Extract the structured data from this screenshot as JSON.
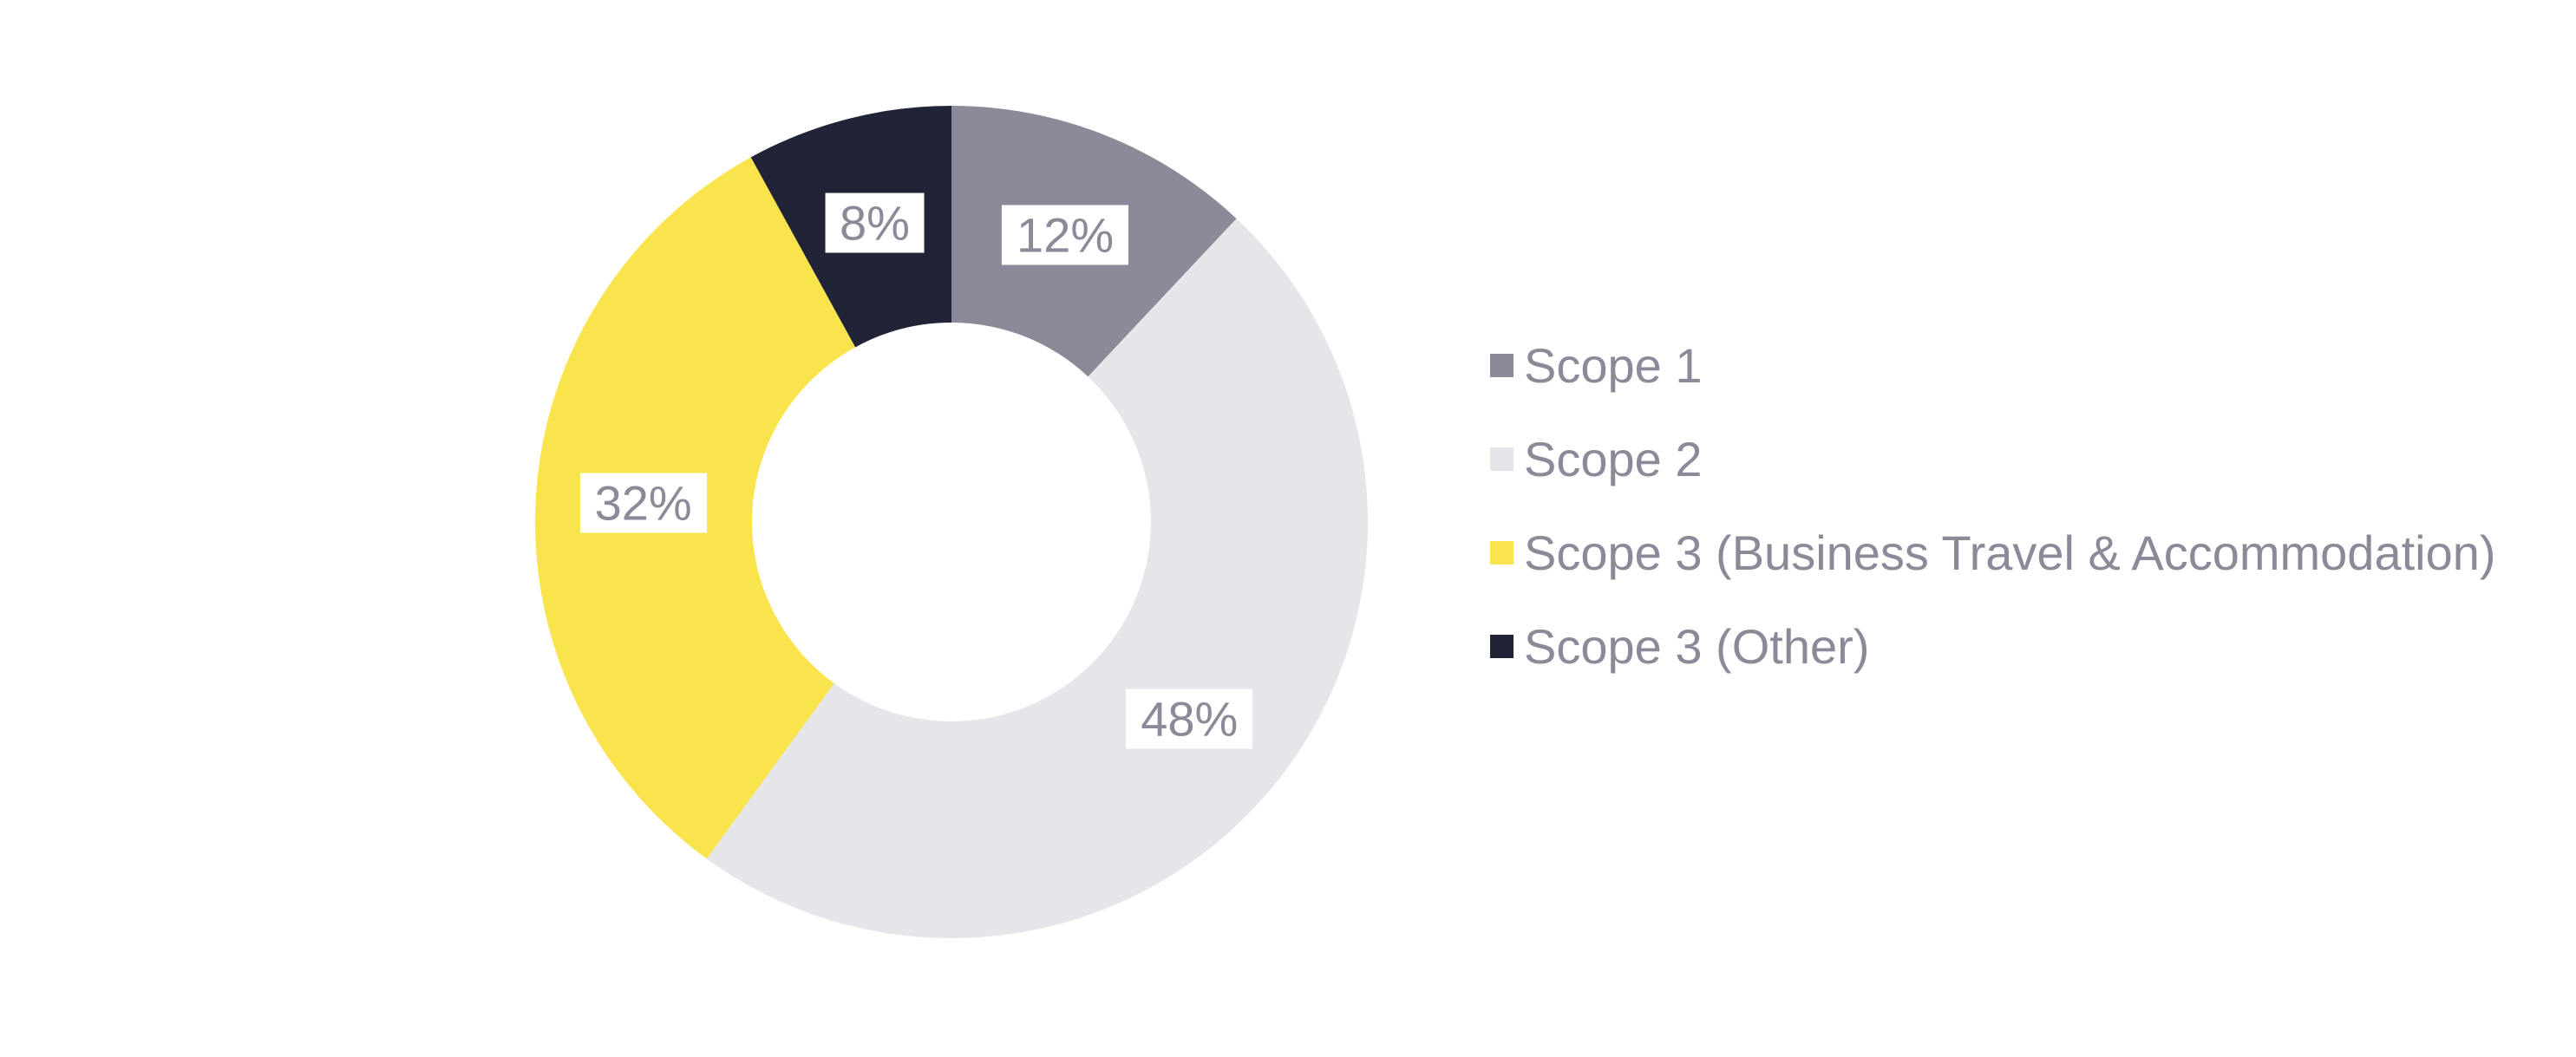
{
  "page": {
    "background": "#FFFFFF"
  },
  "chart_data": {
    "type": "pie",
    "subtype": "donut",
    "categories": [
      "Scope 1",
      "Scope 2",
      "Scope 3 (Business Travel & Accommodation)",
      "Scope 3 (Other)"
    ],
    "values": [
      12,
      48,
      32,
      8
    ],
    "unit": "%",
    "value_labels": [
      "12%",
      "48%",
      "32%",
      "8%"
    ],
    "colors": [
      "#8A8A99",
      "#E5E5EA",
      "#FAE44E",
      "#212337"
    ],
    "start_angle_deg": 0,
    "direction": "clockwise",
    "donut_hole_ratio": 0.48,
    "grid": false,
    "legend_position": "right",
    "label_style": {
      "background": "#FFFFFF",
      "text_color": "#8A8A99"
    },
    "legend_text_color": "#8A8A99"
  }
}
